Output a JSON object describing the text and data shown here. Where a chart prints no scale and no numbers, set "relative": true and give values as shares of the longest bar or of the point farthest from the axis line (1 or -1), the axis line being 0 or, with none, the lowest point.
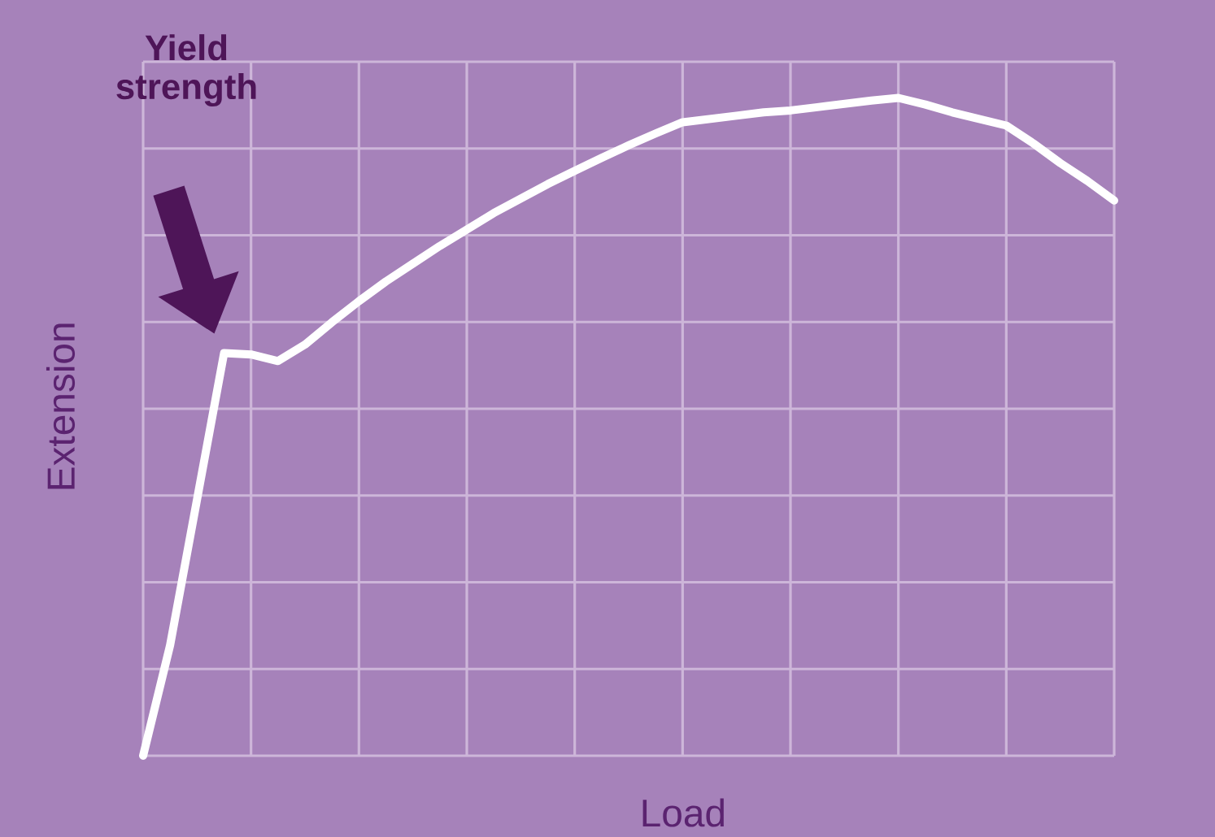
{
  "chart_data": {
    "type": "line",
    "relative": true,
    "xlabel": "Load",
    "ylabel": "Extension",
    "categories": [
      null,
      null,
      null,
      null,
      null,
      null,
      null,
      null,
      null,
      null,
      null,
      null,
      null,
      null,
      null,
      null,
      null,
      null,
      null,
      null,
      null,
      null,
      null,
      null,
      null,
      null,
      null,
      null,
      null,
      null,
      null,
      null,
      null,
      null,
      null,
      null,
      null
    ],
    "series": [
      {
        "color": "#ffffff",
        "values": [
          0,
          0.168,
          0.39,
          0.612,
          0.61,
          0.6,
          0.625,
          0.659,
          0.691,
          0.721,
          0.748,
          0.775,
          0.8,
          0.825,
          0.847,
          0.869,
          0.889,
          0.909,
          0.928,
          0.946,
          0.963,
          0.968,
          0.973,
          0.978,
          0.981,
          0.986,
          0.991,
          0.996,
          1,
          0.99,
          0.978,
          0.968,
          0.958,
          0.931,
          0.901,
          0.874,
          0.844
        ]
      }
    ],
    "grid": true,
    "line_style": "solid",
    "annotations": [
      "Yield strength"
    ]
  }
}
